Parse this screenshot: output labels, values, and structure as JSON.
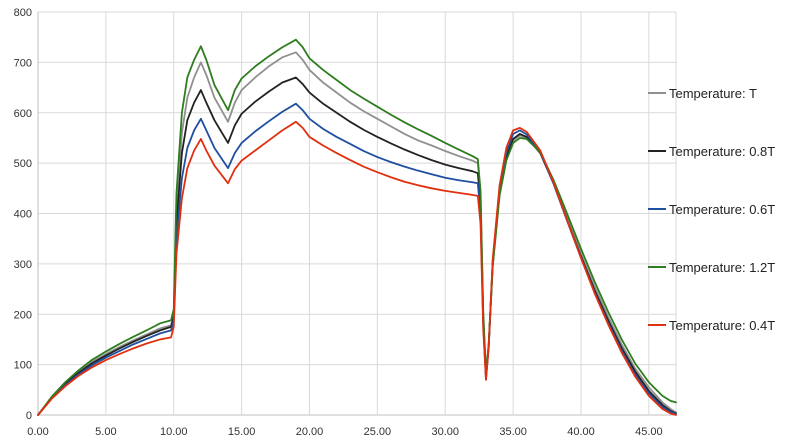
{
  "chart_data": {
    "type": "line",
    "title": "",
    "xlabel": "",
    "ylabel": "",
    "xlim": [
      0,
      47
    ],
    "ylim": [
      0,
      800
    ],
    "grid": true,
    "legend_position": "right",
    "x_ticks": [
      "0.00",
      "5.00",
      "10.00",
      "15.00",
      "20.00",
      "25.00",
      "30.00",
      "35.00",
      "40.00",
      "45.00"
    ],
    "x_tick_values": [
      0,
      5,
      10,
      15,
      20,
      25,
      30,
      35,
      40,
      45
    ],
    "y_ticks": [
      "0",
      "100",
      "200",
      "300",
      "400",
      "500",
      "600",
      "700",
      "800"
    ],
    "y_tick_values": [
      0,
      100,
      200,
      300,
      400,
      500,
      600,
      700,
      800
    ],
    "series": [
      {
        "name": "Temperature: T",
        "color": "#909090",
        "points": [
          [
            0,
            0
          ],
          [
            1,
            35
          ],
          [
            2,
            63
          ],
          [
            3,
            86
          ],
          [
            4,
            106
          ],
          [
            5,
            121
          ],
          [
            6,
            135
          ],
          [
            7,
            148
          ],
          [
            8,
            160
          ],
          [
            9,
            172
          ],
          [
            9.8,
            178
          ],
          [
            10,
            200
          ],
          [
            10.2,
            410
          ],
          [
            10.6,
            560
          ],
          [
            11,
            630
          ],
          [
            11.5,
            670
          ],
          [
            12,
            700
          ],
          [
            12.4,
            675
          ],
          [
            13,
            630
          ],
          [
            14,
            582
          ],
          [
            14.5,
            620
          ],
          [
            15,
            645
          ],
          [
            16,
            670
          ],
          [
            17,
            692
          ],
          [
            18,
            710
          ],
          [
            19,
            720
          ],
          [
            19.5,
            705
          ],
          [
            20,
            685
          ],
          [
            21,
            660
          ],
          [
            22,
            640
          ],
          [
            23,
            620
          ],
          [
            24,
            603
          ],
          [
            25,
            588
          ],
          [
            26,
            573
          ],
          [
            27,
            558
          ],
          [
            28,
            545
          ],
          [
            29,
            535
          ],
          [
            30,
            524
          ],
          [
            31,
            514
          ],
          [
            32,
            505
          ],
          [
            32.4,
            500
          ],
          [
            32.6,
            440
          ],
          [
            32.8,
            200
          ],
          [
            33,
            80
          ],
          [
            33.2,
            140
          ],
          [
            33.5,
            300
          ],
          [
            34,
            440
          ],
          [
            34.5,
            510
          ],
          [
            35,
            545
          ],
          [
            35.5,
            555
          ],
          [
            36,
            550
          ],
          [
            37,
            520
          ],
          [
            38,
            460
          ],
          [
            39,
            390
          ],
          [
            40,
            320
          ],
          [
            41,
            255
          ],
          [
            42,
            195
          ],
          [
            43,
            140
          ],
          [
            44,
            92
          ],
          [
            45,
            55
          ],
          [
            46,
            25
          ],
          [
            46.6,
            12
          ],
          [
            47,
            5
          ]
        ]
      },
      {
        "name": "Temperature: 0.8T",
        "color": "#222222",
        "points": [
          [
            0,
            0
          ],
          [
            1,
            34
          ],
          [
            2,
            61
          ],
          [
            3,
            84
          ],
          [
            4,
            103
          ],
          [
            5,
            118
          ],
          [
            6,
            132
          ],
          [
            7,
            145
          ],
          [
            8,
            157
          ],
          [
            9,
            168
          ],
          [
            9.8,
            175
          ],
          [
            10,
            195
          ],
          [
            10.2,
            380
          ],
          [
            10.6,
            520
          ],
          [
            11,
            585
          ],
          [
            11.5,
            620
          ],
          [
            12,
            645
          ],
          [
            12.4,
            620
          ],
          [
            13,
            585
          ],
          [
            14,
            540
          ],
          [
            14.5,
            575
          ],
          [
            15,
            598
          ],
          [
            16,
            622
          ],
          [
            17,
            642
          ],
          [
            18,
            660
          ],
          [
            19,
            670
          ],
          [
            19.5,
            657
          ],
          [
            20,
            640
          ],
          [
            21,
            618
          ],
          [
            22,
            600
          ],
          [
            23,
            582
          ],
          [
            24,
            566
          ],
          [
            25,
            552
          ],
          [
            26,
            539
          ],
          [
            27,
            527
          ],
          [
            28,
            516
          ],
          [
            29,
            506
          ],
          [
            30,
            497
          ],
          [
            31,
            490
          ],
          [
            32,
            484
          ],
          [
            32.4,
            480
          ],
          [
            32.6,
            420
          ],
          [
            32.8,
            190
          ],
          [
            33,
            75
          ],
          [
            33.2,
            135
          ],
          [
            33.5,
            300
          ],
          [
            34,
            440
          ],
          [
            34.5,
            512
          ],
          [
            35,
            548
          ],
          [
            35.5,
            558
          ],
          [
            36,
            552
          ],
          [
            37,
            520
          ],
          [
            38,
            458
          ],
          [
            39,
            385
          ],
          [
            40,
            315
          ],
          [
            41,
            248
          ],
          [
            42,
            188
          ],
          [
            43,
            133
          ],
          [
            44,
            86
          ],
          [
            45,
            48
          ],
          [
            46,
            20
          ],
          [
            46.6,
            8
          ],
          [
            47,
            3
          ]
        ]
      },
      {
        "name": "Temperature: 0.6T",
        "color": "#1f4fa0",
        "points": [
          [
            0,
            0
          ],
          [
            1,
            33
          ],
          [
            2,
            59
          ],
          [
            3,
            81
          ],
          [
            4,
            99
          ],
          [
            5,
            114
          ],
          [
            6,
            127
          ],
          [
            7,
            140
          ],
          [
            8,
            151
          ],
          [
            9,
            162
          ],
          [
            9.8,
            168
          ],
          [
            10,
            188
          ],
          [
            10.2,
            350
          ],
          [
            10.6,
            470
          ],
          [
            11,
            530
          ],
          [
            11.5,
            565
          ],
          [
            12,
            588
          ],
          [
            12.4,
            565
          ],
          [
            13,
            530
          ],
          [
            14,
            490
          ],
          [
            14.5,
            520
          ],
          [
            15,
            540
          ],
          [
            16,
            563
          ],
          [
            17,
            583
          ],
          [
            18,
            602
          ],
          [
            19,
            618
          ],
          [
            19.5,
            605
          ],
          [
            20,
            588
          ],
          [
            21,
            568
          ],
          [
            22,
            552
          ],
          [
            23,
            538
          ],
          [
            24,
            524
          ],
          [
            25,
            512
          ],
          [
            26,
            502
          ],
          [
            27,
            493
          ],
          [
            28,
            485
          ],
          [
            29,
            478
          ],
          [
            30,
            471
          ],
          [
            31,
            466
          ],
          [
            32,
            462
          ],
          [
            32.4,
            460
          ],
          [
            32.6,
            400
          ],
          [
            32.8,
            180
          ],
          [
            33,
            70
          ],
          [
            33.2,
            135
          ],
          [
            33.5,
            305
          ],
          [
            34,
            448
          ],
          [
            34.5,
            522
          ],
          [
            35,
            558
          ],
          [
            35.5,
            565
          ],
          [
            36,
            557
          ],
          [
            37,
            522
          ],
          [
            38,
            458
          ],
          [
            39,
            384
          ],
          [
            40,
            312
          ],
          [
            41,
            244
          ],
          [
            42,
            183
          ],
          [
            43,
            128
          ],
          [
            44,
            80
          ],
          [
            45,
            43
          ],
          [
            46,
            16
          ],
          [
            46.6,
            6
          ],
          [
            47,
            2
          ]
        ]
      },
      {
        "name": "Temperature: 1.2T",
        "color": "#2e7d1e",
        "points": [
          [
            0,
            0
          ],
          [
            1,
            36
          ],
          [
            2,
            65
          ],
          [
            3,
            89
          ],
          [
            4,
            110
          ],
          [
            5,
            126
          ],
          [
            6,
            141
          ],
          [
            7,
            155
          ],
          [
            8,
            168
          ],
          [
            9,
            182
          ],
          [
            9.8,
            188
          ],
          [
            10,
            210
          ],
          [
            10.2,
            440
          ],
          [
            10.6,
            600
          ],
          [
            11,
            670
          ],
          [
            11.5,
            705
          ],
          [
            12,
            732
          ],
          [
            12.4,
            705
          ],
          [
            13,
            655
          ],
          [
            14,
            605
          ],
          [
            14.5,
            645
          ],
          [
            15,
            668
          ],
          [
            16,
            692
          ],
          [
            17,
            712
          ],
          [
            18,
            730
          ],
          [
            19,
            745
          ],
          [
            19.5,
            730
          ],
          [
            20,
            708
          ],
          [
            21,
            685
          ],
          [
            22,
            665
          ],
          [
            23,
            645
          ],
          [
            24,
            628
          ],
          [
            25,
            612
          ],
          [
            26,
            596
          ],
          [
            27,
            581
          ],
          [
            28,
            567
          ],
          [
            29,
            554
          ],
          [
            30,
            540
          ],
          [
            31,
            527
          ],
          [
            32,
            514
          ],
          [
            32.4,
            508
          ],
          [
            32.6,
            445
          ],
          [
            32.8,
            205
          ],
          [
            33,
            85
          ],
          [
            33.2,
            140
          ],
          [
            33.5,
            295
          ],
          [
            34,
            435
          ],
          [
            34.5,
            505
          ],
          [
            35,
            540
          ],
          [
            35.5,
            550
          ],
          [
            36,
            548
          ],
          [
            37,
            522
          ],
          [
            38,
            465
          ],
          [
            39,
            398
          ],
          [
            40,
            330
          ],
          [
            41,
            265
          ],
          [
            42,
            205
          ],
          [
            43,
            150
          ],
          [
            44,
            102
          ],
          [
            45,
            65
          ],
          [
            46,
            38
          ],
          [
            46.6,
            28
          ],
          [
            47,
            25
          ]
        ]
      },
      {
        "name": "Temperature: 0.4T",
        "color": "#e03010",
        "points": [
          [
            0,
            0
          ],
          [
            1,
            32
          ],
          [
            2,
            57
          ],
          [
            3,
            78
          ],
          [
            4,
            95
          ],
          [
            5,
            109
          ],
          [
            6,
            121
          ],
          [
            7,
            132
          ],
          [
            8,
            142
          ],
          [
            9,
            150
          ],
          [
            9.8,
            154
          ],
          [
            10,
            175
          ],
          [
            10.2,
            320
          ],
          [
            10.6,
            430
          ],
          [
            11,
            490
          ],
          [
            11.5,
            525
          ],
          [
            12,
            548
          ],
          [
            12.4,
            525
          ],
          [
            13,
            495
          ],
          [
            14,
            460
          ],
          [
            14.5,
            488
          ],
          [
            15,
            505
          ],
          [
            16,
            525
          ],
          [
            17,
            545
          ],
          [
            18,
            565
          ],
          [
            19,
            582
          ],
          [
            19.5,
            570
          ],
          [
            20,
            552
          ],
          [
            21,
            535
          ],
          [
            22,
            520
          ],
          [
            23,
            506
          ],
          [
            24,
            493
          ],
          [
            25,
            482
          ],
          [
            26,
            472
          ],
          [
            27,
            463
          ],
          [
            28,
            456
          ],
          [
            29,
            450
          ],
          [
            30,
            445
          ],
          [
            31,
            441
          ],
          [
            32,
            437
          ],
          [
            32.4,
            435
          ],
          [
            32.6,
            380
          ],
          [
            32.8,
            170
          ],
          [
            33,
            70
          ],
          [
            33.2,
            135
          ],
          [
            33.5,
            310
          ],
          [
            34,
            455
          ],
          [
            34.5,
            530
          ],
          [
            35,
            565
          ],
          [
            35.5,
            570
          ],
          [
            36,
            562
          ],
          [
            37,
            525
          ],
          [
            38,
            460
          ],
          [
            39,
            385
          ],
          [
            40,
            312
          ],
          [
            41,
            242
          ],
          [
            42,
            180
          ],
          [
            43,
            124
          ],
          [
            44,
            76
          ],
          [
            45,
            38
          ],
          [
            46,
            12
          ],
          [
            46.6,
            3
          ],
          [
            47,
            0
          ]
        ]
      }
    ],
    "legend_order": [
      0,
      1,
      2,
      3,
      4
    ]
  }
}
